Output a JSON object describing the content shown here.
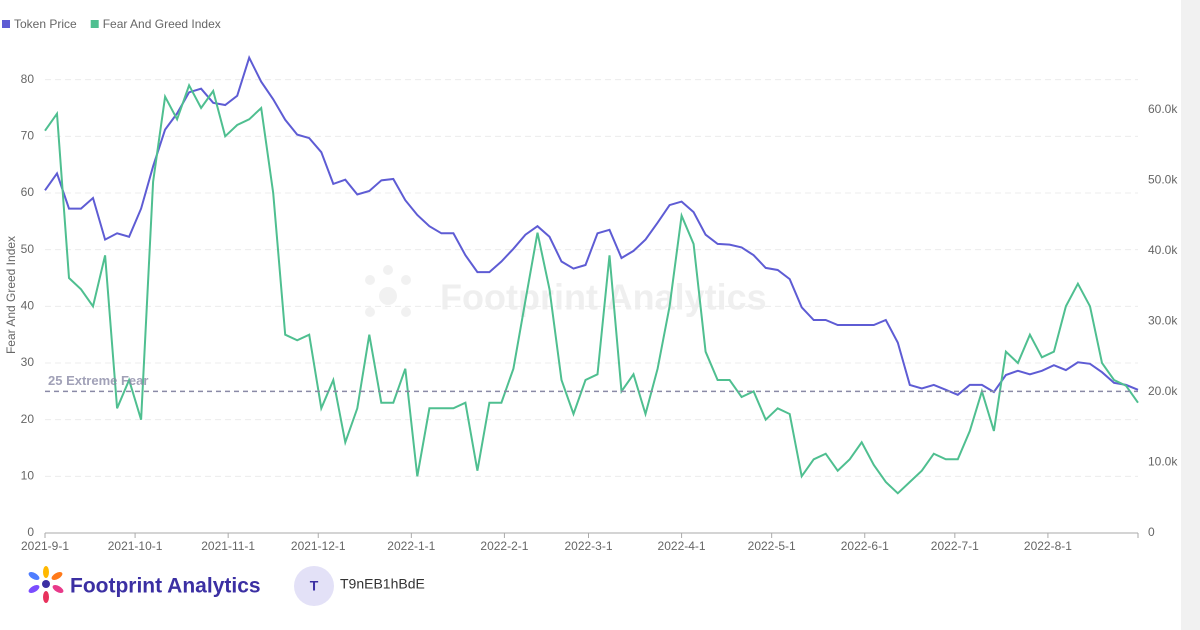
{
  "chart_data": {
    "type": "line",
    "y_label": "Fear And Greed Index",
    "x": [
      "2021-9-1",
      "2021-9-5",
      "2021-9-9",
      "2021-9-13",
      "2021-9-17",
      "2021-9-21",
      "2021-9-25",
      "2021-9-29",
      "2021-10-3",
      "2021-10-7",
      "2021-10-11",
      "2021-10-15",
      "2021-10-19",
      "2021-10-23",
      "2021-10-27",
      "2021-10-31",
      "2021-11-4",
      "2021-11-8",
      "2021-11-12",
      "2021-11-16",
      "2021-11-20",
      "2021-11-24",
      "2021-11-28",
      "2021-12-2",
      "2021-12-6",
      "2021-12-10",
      "2021-12-14",
      "2021-12-18",
      "2021-12-22",
      "2021-12-26",
      "2021-12-30",
      "2022-1-3",
      "2022-1-7",
      "2022-1-11",
      "2022-1-15",
      "2022-1-19",
      "2022-1-23",
      "2022-1-27",
      "2022-1-31",
      "2022-2-4",
      "2022-2-8",
      "2022-2-12",
      "2022-2-16",
      "2022-2-20",
      "2022-2-24",
      "2022-2-28",
      "2022-3-4",
      "2022-3-8",
      "2022-3-12",
      "2022-3-16",
      "2022-3-20",
      "2022-3-24",
      "2022-3-28",
      "2022-4-1",
      "2022-4-5",
      "2022-4-9",
      "2022-4-13",
      "2022-4-17",
      "2022-4-21",
      "2022-4-25",
      "2022-4-29",
      "2022-5-3",
      "2022-5-7",
      "2022-5-11",
      "2022-5-15",
      "2022-5-19",
      "2022-5-23",
      "2022-5-27",
      "2022-5-31",
      "2022-6-4",
      "2022-6-8",
      "2022-6-12",
      "2022-6-16",
      "2022-6-20",
      "2022-6-24",
      "2022-6-28",
      "2022-7-2",
      "2022-7-6",
      "2022-7-10",
      "2022-7-14",
      "2022-7-18",
      "2022-7-22",
      "2022-7-26",
      "2022-7-30",
      "2022-8-3",
      "2022-8-7",
      "2022-8-11",
      "2022-8-15",
      "2022-8-19",
      "2022-8-23",
      "2022-8-27",
      "2022-8-31"
    ],
    "series": [
      {
        "name": "Token Price",
        "color": "#5e5cd4",
        "axis": "y2",
        "values": [
          48600,
          51000,
          46000,
          46000,
          47500,
          41600,
          42500,
          42000,
          46000,
          52000,
          57200,
          59500,
          62500,
          63000,
          61000,
          60700,
          62000,
          67400,
          64000,
          61500,
          58600,
          56500,
          56000,
          54000,
          49500,
          50100,
          48000,
          48500,
          50000,
          50200,
          47200,
          45100,
          43500,
          42500,
          42500,
          39400,
          37000,
          37000,
          38500,
          40300,
          42300,
          43500,
          42000,
          38500,
          37500,
          38000,
          42500,
          43000,
          39000,
          40000,
          41600,
          44000,
          46500,
          47000,
          45500,
          42300,
          41000,
          40900,
          40500,
          39400,
          37600,
          37300,
          36000,
          32000,
          30200,
          30200,
          29500,
          29500,
          29500,
          29500,
          30200,
          27000,
          21000,
          20500,
          21000,
          20300,
          19600,
          21000,
          21000,
          20000,
          22400,
          23000,
          22500,
          23000,
          23800,
          23100,
          24200,
          24000,
          22800,
          21300,
          21000,
          20300
        ]
      },
      {
        "name": "Fear And Greed Index",
        "color": "#4fbf90",
        "values": [
          71,
          74,
          45,
          43,
          40,
          49,
          22,
          27,
          20,
          62,
          77,
          73,
          79,
          75,
          78,
          70,
          72,
          73,
          75,
          60,
          35,
          34,
          35,
          22,
          27,
          16,
          22,
          35,
          23,
          23,
          29,
          10,
          22,
          22,
          22,
          23,
          11,
          23,
          23,
          29,
          41,
          53,
          43,
          27,
          21,
          27,
          28,
          49,
          25,
          28,
          21,
          29,
          40,
          56,
          51,
          32,
          27,
          27,
          24,
          25,
          20,
          22,
          21,
          10,
          13,
          14,
          11,
          13,
          16,
          12,
          9,
          7,
          9,
          11,
          14,
          13,
          13,
          18,
          25,
          18,
          32,
          30,
          35,
          31,
          32,
          40,
          44,
          40,
          30,
          27,
          26,
          23
        ]
      }
    ],
    "xlim": [
      "2021-9-1",
      "2022-8-31"
    ],
    "xticks": [
      "2021-9-1",
      "2021-10-1",
      "2021-11-1",
      "2021-12-1",
      "2022-1-1",
      "2022-2-1",
      "2022-3-1",
      "2022-4-1",
      "2022-5-1",
      "2022-6-1",
      "2022-7-1",
      "2022-8-1"
    ],
    "ylim": [
      0,
      84
    ],
    "yticks": [
      0,
      10,
      20,
      30,
      40,
      50,
      60,
      70,
      80
    ],
    "y2lim": [
      0,
      67500
    ],
    "y2ticks": [
      0,
      {
        "value": 10000,
        "label": "10.0k"
      },
      {
        "value": 20000,
        "label": "20.0k"
      },
      {
        "value": 30000,
        "label": "30.0k"
      },
      {
        "value": 40000,
        "label": "40.0k"
      },
      {
        "value": 50000,
        "label": "50.0k"
      },
      {
        "value": 60000,
        "label": "60.0k"
      }
    ],
    "grid": true,
    "legend": "top-left",
    "reference_line": {
      "value": 25,
      "label": "25 Extreme Fear",
      "color": "#8a8aa6"
    },
    "watermark": "Footprint Analytics"
  },
  "footer": {
    "brand": "Footprint Analytics",
    "avatar": "T",
    "user": "T9nEB1hBdE"
  }
}
